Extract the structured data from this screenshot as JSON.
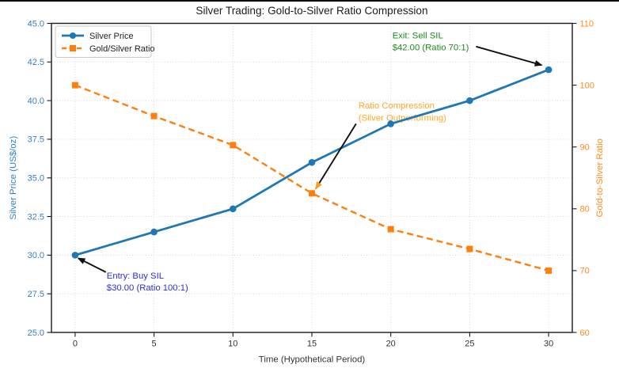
{
  "page": {
    "background": "#ffffff",
    "top_border_color": "#0a0a0a"
  },
  "chart_data": {
    "type": "line",
    "title": "Silver Trading: Gold-to-Silver Ratio Compression",
    "xlabel": "Time (Hypothetical Period)",
    "x": [
      0,
      5,
      10,
      15,
      20,
      25,
      30
    ],
    "x_tick_labels": [
      "0",
      "5",
      "10",
      "15",
      "20",
      "25",
      "30"
    ],
    "xlim": [
      -1.5,
      31.5
    ],
    "grid": true,
    "left_axis": {
      "label": "Silver Price (US$/oz)",
      "color": "#3580bf",
      "lim": [
        25,
        45
      ],
      "ticks": [
        45.0,
        42.5,
        40.0,
        37.5,
        35.0,
        32.5,
        30.0,
        27.5,
        25.0
      ],
      "tick_labels": [
        "45.0",
        "42.5",
        "40.0",
        "37.5",
        "35.0",
        "32.5",
        "30.0",
        "27.5",
        "25.0"
      ]
    },
    "right_axis": {
      "label": "Gold-to-Silver Ratio",
      "color": "#ff8c1a",
      "lim": [
        60,
        110
      ],
      "ticks": [
        110,
        100,
        90,
        80,
        70,
        60
      ],
      "tick_labels": [
        "110",
        "100",
        "90",
        "80",
        "70",
        "60"
      ]
    },
    "series": [
      {
        "name": "Silver Price",
        "axis": "left",
        "color": "#1f77b4",
        "line_style": "solid",
        "marker": "circle",
        "values": [
          30.0,
          31.5,
          33.0,
          36.0,
          38.5,
          40.0,
          42.0
        ]
      },
      {
        "name": "Gold/Silver Ratio",
        "axis": "right",
        "color": "#ff7f0e",
        "line_style": "dashed",
        "marker": "square",
        "values": [
          100,
          95,
          90.3,
          82.5,
          76.7,
          73.5,
          70
        ]
      }
    ],
    "legend": {
      "position": "upper-left",
      "entries": [
        "Silver Price",
        "Gold/Silver Ratio"
      ]
    },
    "annotations": [
      {
        "id": "entry",
        "lines": [
          "Entry: Buy SIL",
          "$30.00 (Ratio 100:1)"
        ],
        "color": "#2e2edd",
        "text_at": {
          "t": 2.0,
          "v": 29.05
        },
        "arrow": {
          "from": {
            "t": 1.95,
            "v": 28.9
          },
          "to": {
            "t": 0.2,
            "v": 29.8
          },
          "shaft_color": "#111111",
          "head_color": "#111111"
        }
      },
      {
        "id": "exit",
        "lines": [
          "Exit: Sell SIL",
          "$42.00 (Ratio 70:1)"
        ],
        "color": "#1e8a1e",
        "text_at": {
          "t": 20.1,
          "v": 44.6
        },
        "arrow": {
          "from": {
            "t": 25.4,
            "v": 43.5
          },
          "to": {
            "t": 29.55,
            "v": 42.3
          },
          "shaft_color": "#111111",
          "head_color": "#111111"
        }
      },
      {
        "id": "ratio-compression",
        "lines": [
          "Ratio Compression",
          "(Silver Outperforming)"
        ],
        "color": "#ffa726",
        "text_at": {
          "t": 17.95,
          "v": 40.05
        },
        "arrow": {
          "from": {
            "t": 17.8,
            "v": 38.5
          },
          "to": {
            "t": 15.25,
            "v": 34.3
          },
          "shaft_color": "#111111",
          "head_color": "#ff9b1a"
        }
      }
    ]
  }
}
